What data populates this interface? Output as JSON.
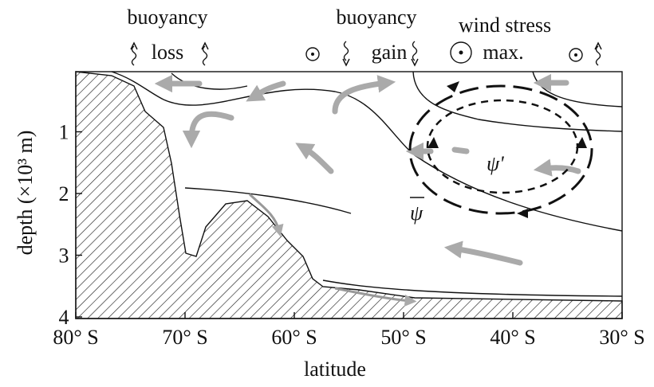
{
  "header": {
    "buoyancy_loss": {
      "line1": "buoyancy",
      "line2": "loss"
    },
    "buoyancy_gain": {
      "line1": "buoyancy",
      "line2": "gain"
    },
    "wind_stress": {
      "line1": "wind stress",
      "line2": "max."
    }
  },
  "x_axis": {
    "label": "latitude",
    "ticks": [
      "80° S",
      "70° S",
      "60° S",
      "50° S",
      "40° S",
      "30° S"
    ]
  },
  "y_axis": {
    "label": "depth (×10³ m)",
    "ticks": [
      "1",
      "2",
      "3",
      "4"
    ]
  },
  "streamfunctions": {
    "mean": "ψ",
    "eddy": "ψ'"
  }
}
